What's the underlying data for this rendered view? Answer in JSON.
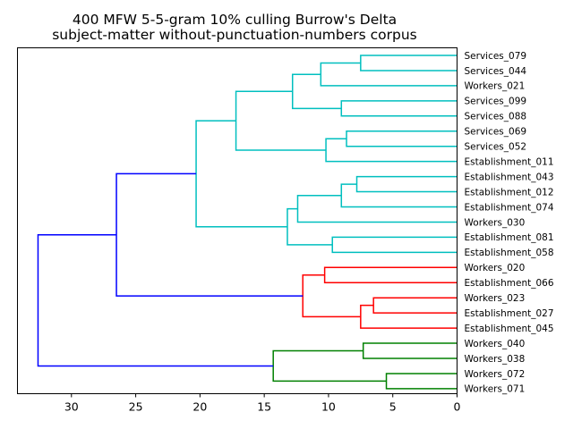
{
  "chart_data": {
    "type": "dendrogram",
    "title": "400 MFW 5-5-gram 10% culling Burrow's Delta",
    "subtitle": "subject-matter without-punctuation-numbers corpus",
    "orientation": "left",
    "x_ticks": [
      30,
      25,
      20,
      15,
      10,
      5,
      0
    ],
    "x_range": [
      34.2,
      0
    ],
    "leaves": [
      "Services_079",
      "Services_044",
      "Workers_021",
      "Services_099",
      "Services_088",
      "Services_069",
      "Services_052",
      "Establishment_011",
      "Establishment_043",
      "Establishment_012",
      "Establishment_074",
      "Workers_030",
      "Establishment_081",
      "Establishment_058",
      "Workers_020",
      "Establishment_066",
      "Workers_023",
      "Establishment_027",
      "Establishment_045",
      "Workers_040",
      "Workers_038",
      "Workers_072",
      "Workers_071"
    ],
    "colors": {
      "cluster1": "#00bfbf",
      "cluster2": "#ff0000",
      "cluster3": "#008000",
      "root": "#0000ff"
    },
    "links": [
      {
        "a": 0,
        "b": 1,
        "h": 7.5,
        "c": "cluster1"
      },
      {
        "a": "L0",
        "b": 2,
        "h": 10.6,
        "c": "cluster1"
      },
      {
        "a": 3,
        "b": 4,
        "h": 9.0,
        "c": "cluster1"
      },
      {
        "a": "L1",
        "b": "L2",
        "h": 12.8,
        "c": "cluster1"
      },
      {
        "a": 5,
        "b": 6,
        "h": 8.6,
        "c": "cluster1"
      },
      {
        "a": "L4",
        "b": 7,
        "h": 10.2,
        "c": "cluster1"
      },
      {
        "a": "L3",
        "b": "L5",
        "h": 17.2,
        "c": "cluster1"
      },
      {
        "a": 8,
        "b": 9,
        "h": 7.8,
        "c": "cluster1"
      },
      {
        "a": "L7",
        "b": 10,
        "h": 9.0,
        "c": "cluster1"
      },
      {
        "a": "L8",
        "b": 11,
        "h": 12.4,
        "c": "cluster1"
      },
      {
        "a": 12,
        "b": 13,
        "h": 9.7,
        "c": "cluster1"
      },
      {
        "a": "L9",
        "b": "L10",
        "h": 13.2,
        "c": "cluster1"
      },
      {
        "a": "L6",
        "b": "L11",
        "h": 20.3,
        "c": "cluster1"
      },
      {
        "a": 14,
        "b": 15,
        "h": 10.3,
        "c": "cluster2"
      },
      {
        "a": 16,
        "b": 17,
        "h": 6.5,
        "c": "cluster2"
      },
      {
        "a": "L14",
        "b": 18,
        "h": 7.5,
        "c": "cluster2"
      },
      {
        "a": "L13",
        "b": "L15",
        "h": 12.0,
        "c": "cluster2"
      },
      {
        "a": "L12",
        "b": "L16",
        "h": 26.5,
        "c": "root"
      },
      {
        "a": 19,
        "b": 20,
        "h": 7.3,
        "c": "cluster3"
      },
      {
        "a": 21,
        "b": 22,
        "h": 5.5,
        "c": "cluster3"
      },
      {
        "a": "L18",
        "b": "L19",
        "h": 14.3,
        "c": "cluster3"
      },
      {
        "a": "L17",
        "b": "L20",
        "h": 32.6,
        "c": "root"
      }
    ]
  }
}
